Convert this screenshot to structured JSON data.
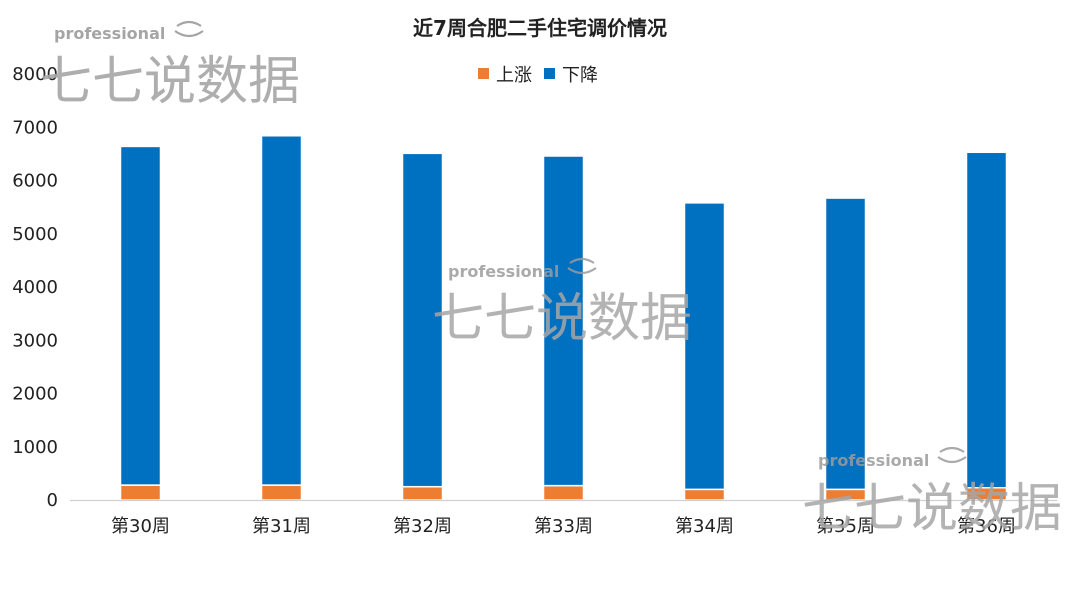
{
  "chart_data": {
    "type": "bar",
    "stacked": true,
    "title": "近7周合肥二手住宅调价情况",
    "categories": [
      "第30周",
      "第31周",
      "第32周",
      "第33周",
      "第34周",
      "第35周",
      "第36周"
    ],
    "series": [
      {
        "name": "上涨",
        "color": "#ED7D31",
        "values": [
          280,
          280,
          250,
          270,
          200,
          200,
          230
        ]
      },
      {
        "name": "下降",
        "color": "#0070C0",
        "values": [
          6360,
          6560,
          6260,
          6190,
          5380,
          5470,
          6300
        ]
      }
    ],
    "ylim": [
      0,
      8000
    ],
    "yticks": [
      0,
      1000,
      2000,
      3000,
      4000,
      5000,
      6000,
      7000,
      8000
    ],
    "legend_position": "top-center",
    "grid": false
  },
  "watermark": {
    "tagline": "professional",
    "brand": "七七说数据"
  }
}
